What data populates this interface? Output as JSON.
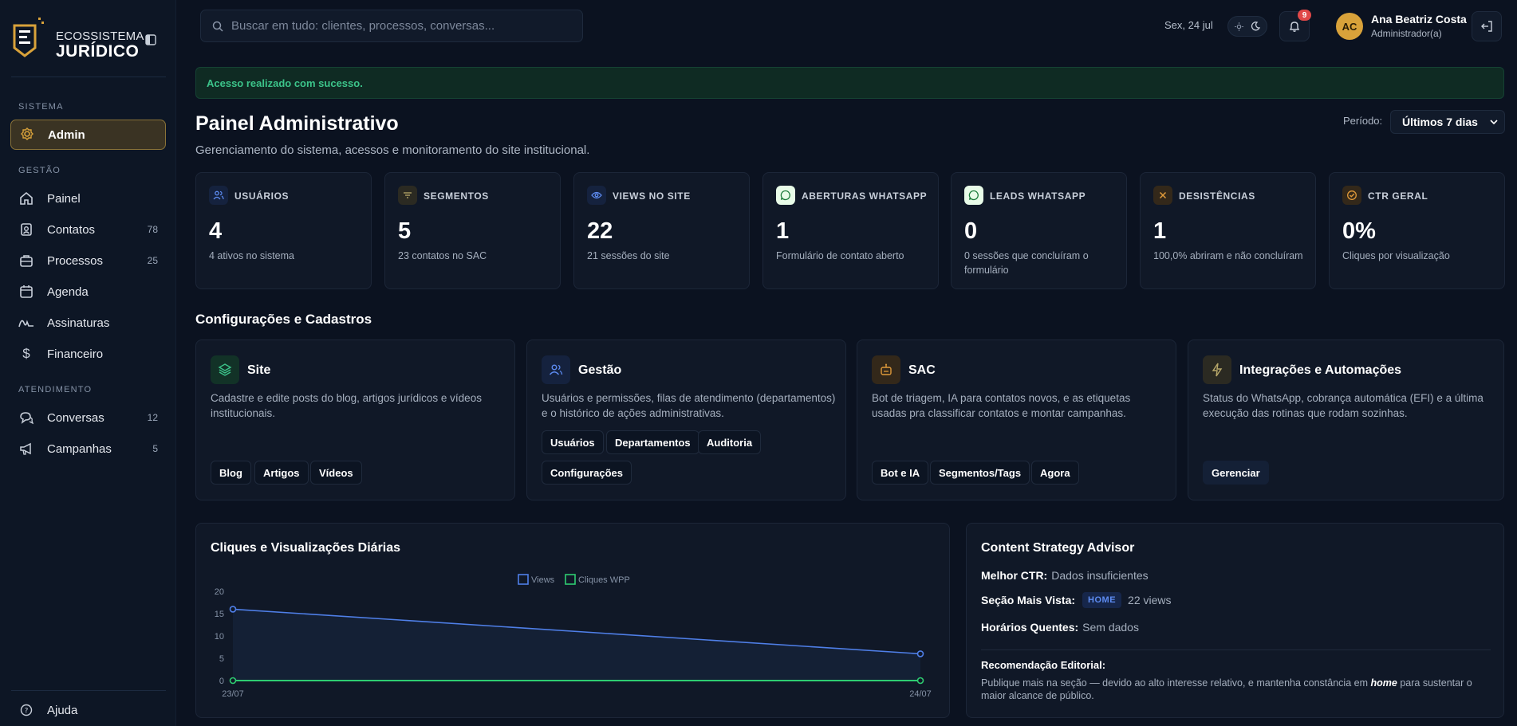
{
  "brand": {
    "line1": "ECOSSISTEMA",
    "line2": "JURÍDICO",
    "accent": "#d9a23a"
  },
  "sidebar": {
    "sections": [
      {
        "label": "SISTEMA"
      },
      {
        "label": "GESTÃO"
      },
      {
        "label": "ATENDIMENTO"
      }
    ],
    "items": [
      {
        "label": "Admin",
        "icon": "admin-gear-icon",
        "count": ""
      },
      {
        "label": "Painel",
        "icon": "home-icon",
        "count": ""
      },
      {
        "label": "Contatos",
        "icon": "contacts-icon",
        "count": "78"
      },
      {
        "label": "Processos",
        "icon": "briefcase-icon",
        "count": "25"
      },
      {
        "label": "Agenda",
        "icon": "calendar-icon",
        "count": ""
      },
      {
        "label": "Assinaturas",
        "icon": "signature-icon",
        "count": ""
      },
      {
        "label": "Financeiro",
        "icon": "dollar-icon",
        "count": ""
      },
      {
        "label": "Conversas",
        "icon": "chat-icon",
        "count": "12"
      },
      {
        "label": "Campanhas",
        "icon": "megaphone-icon",
        "count": "5"
      }
    ],
    "help": "Ajuda"
  },
  "header": {
    "search_placeholder": "Buscar em tudo: clientes, processos, conversas...",
    "date": "Sex, 24 jul",
    "notifications": "9",
    "user": {
      "initials": "AC",
      "name": "Ana Beatriz Costa",
      "role": "Administrador(a)"
    }
  },
  "alert": "Acesso realizado com sucesso.",
  "page": {
    "title": "Painel Administrativo",
    "subtitle": "Gerenciamento do sistema, acessos e monitoramento do site institucional.",
    "period_label": "Período:",
    "period_value": "Últimos 7 dias"
  },
  "stats": [
    {
      "title": "USUÁRIOS",
      "value": "4",
      "desc": "4 ativos no sistema",
      "icon": "users-icon"
    },
    {
      "title": "SEGMENTOS",
      "value": "5",
      "desc": "23 contatos no SAC",
      "icon": "filter-icon"
    },
    {
      "title": "VIEWS NO SITE",
      "value": "22",
      "desc": "21 sessões do site",
      "icon": "eye-icon"
    },
    {
      "title": "ABERTURAS WHATSAPP",
      "value": "1",
      "desc": "Formulário de contato aberto",
      "icon": "whatsapp-icon"
    },
    {
      "title": "LEADS WHATSAPP",
      "value": "0",
      "desc": "0 sessões que concluíram o formulário",
      "icon": "whatsapp-icon"
    },
    {
      "title": "DESISTÊNCIAS",
      "value": "1",
      "desc": "100,0% abriram e não concluíram",
      "icon": "x-icon"
    },
    {
      "title": "CTR GERAL",
      "value": "0%",
      "desc": "Cliques por visualização",
      "icon": "check-circle-icon"
    }
  ],
  "config_section_title": "Configurações e Cadastros",
  "config": [
    {
      "title": "Site",
      "icon": "layers-icon",
      "desc": "Cadastre e edite posts do blog, artigos jurídicos e vídeos institucionais.",
      "chips": [
        "Blog",
        "Artigos",
        "Vídeos"
      ]
    },
    {
      "title": "Gestão",
      "icon": "users-icon",
      "desc": "Usuários e permissões, filas de atendimento (departamentos) e o histórico de ações administrativas.",
      "chips": [
        "Usuários",
        "Departamentos",
        "Auditoria",
        "Configurações"
      ]
    },
    {
      "title": "SAC",
      "icon": "bot-icon",
      "desc": "Bot de triagem, IA para contatos novos, e as etiquetas usadas pra classificar contatos e montar campanhas.",
      "chips": [
        "Bot e IA",
        "Segmentos/Tags",
        "Agora"
      ]
    },
    {
      "title": "Integrações e Automações",
      "icon": "lightning-icon",
      "desc": "Status do WhatsApp, cobrança automática (EFI) e a última execução das rotinas que rodam sozinhas.",
      "chips": [
        "Gerenciar"
      ]
    }
  ],
  "chart_title": "Cliques e Visualizações Diárias",
  "chart_data": {
    "type": "line",
    "x": [
      "23/07",
      "24/07"
    ],
    "series": [
      {
        "name": "Views",
        "values": [
          16,
          6
        ],
        "color": "#4f7fe8"
      },
      {
        "name": "Cliques WPP",
        "values": [
          0,
          0
        ],
        "color": "#2ecc71"
      }
    ],
    "yticks": [
      "0",
      "5",
      "10",
      "15",
      "20"
    ],
    "ylim": [
      0,
      20
    ],
    "legend": "top-center"
  },
  "advisor": {
    "title": "Content Strategy Advisor",
    "best_ctr_label": "Melhor CTR:",
    "best_ctr_value": "Dados insuficientes",
    "top_section_label": "Seção Mais Vista:",
    "top_section_badge": "HOME",
    "top_section_views": "22 views",
    "hot_hours_label": "Horários Quentes:",
    "hot_hours_value": "Sem dados",
    "rec_title": "Recomendação Editorial:",
    "rec_pre": "Publique mais na seção — devido ao alto interesse relativo, e mantenha constância em",
    "rec_em": "home",
    "rec_post": "para sustentar o maior alcance de público."
  }
}
